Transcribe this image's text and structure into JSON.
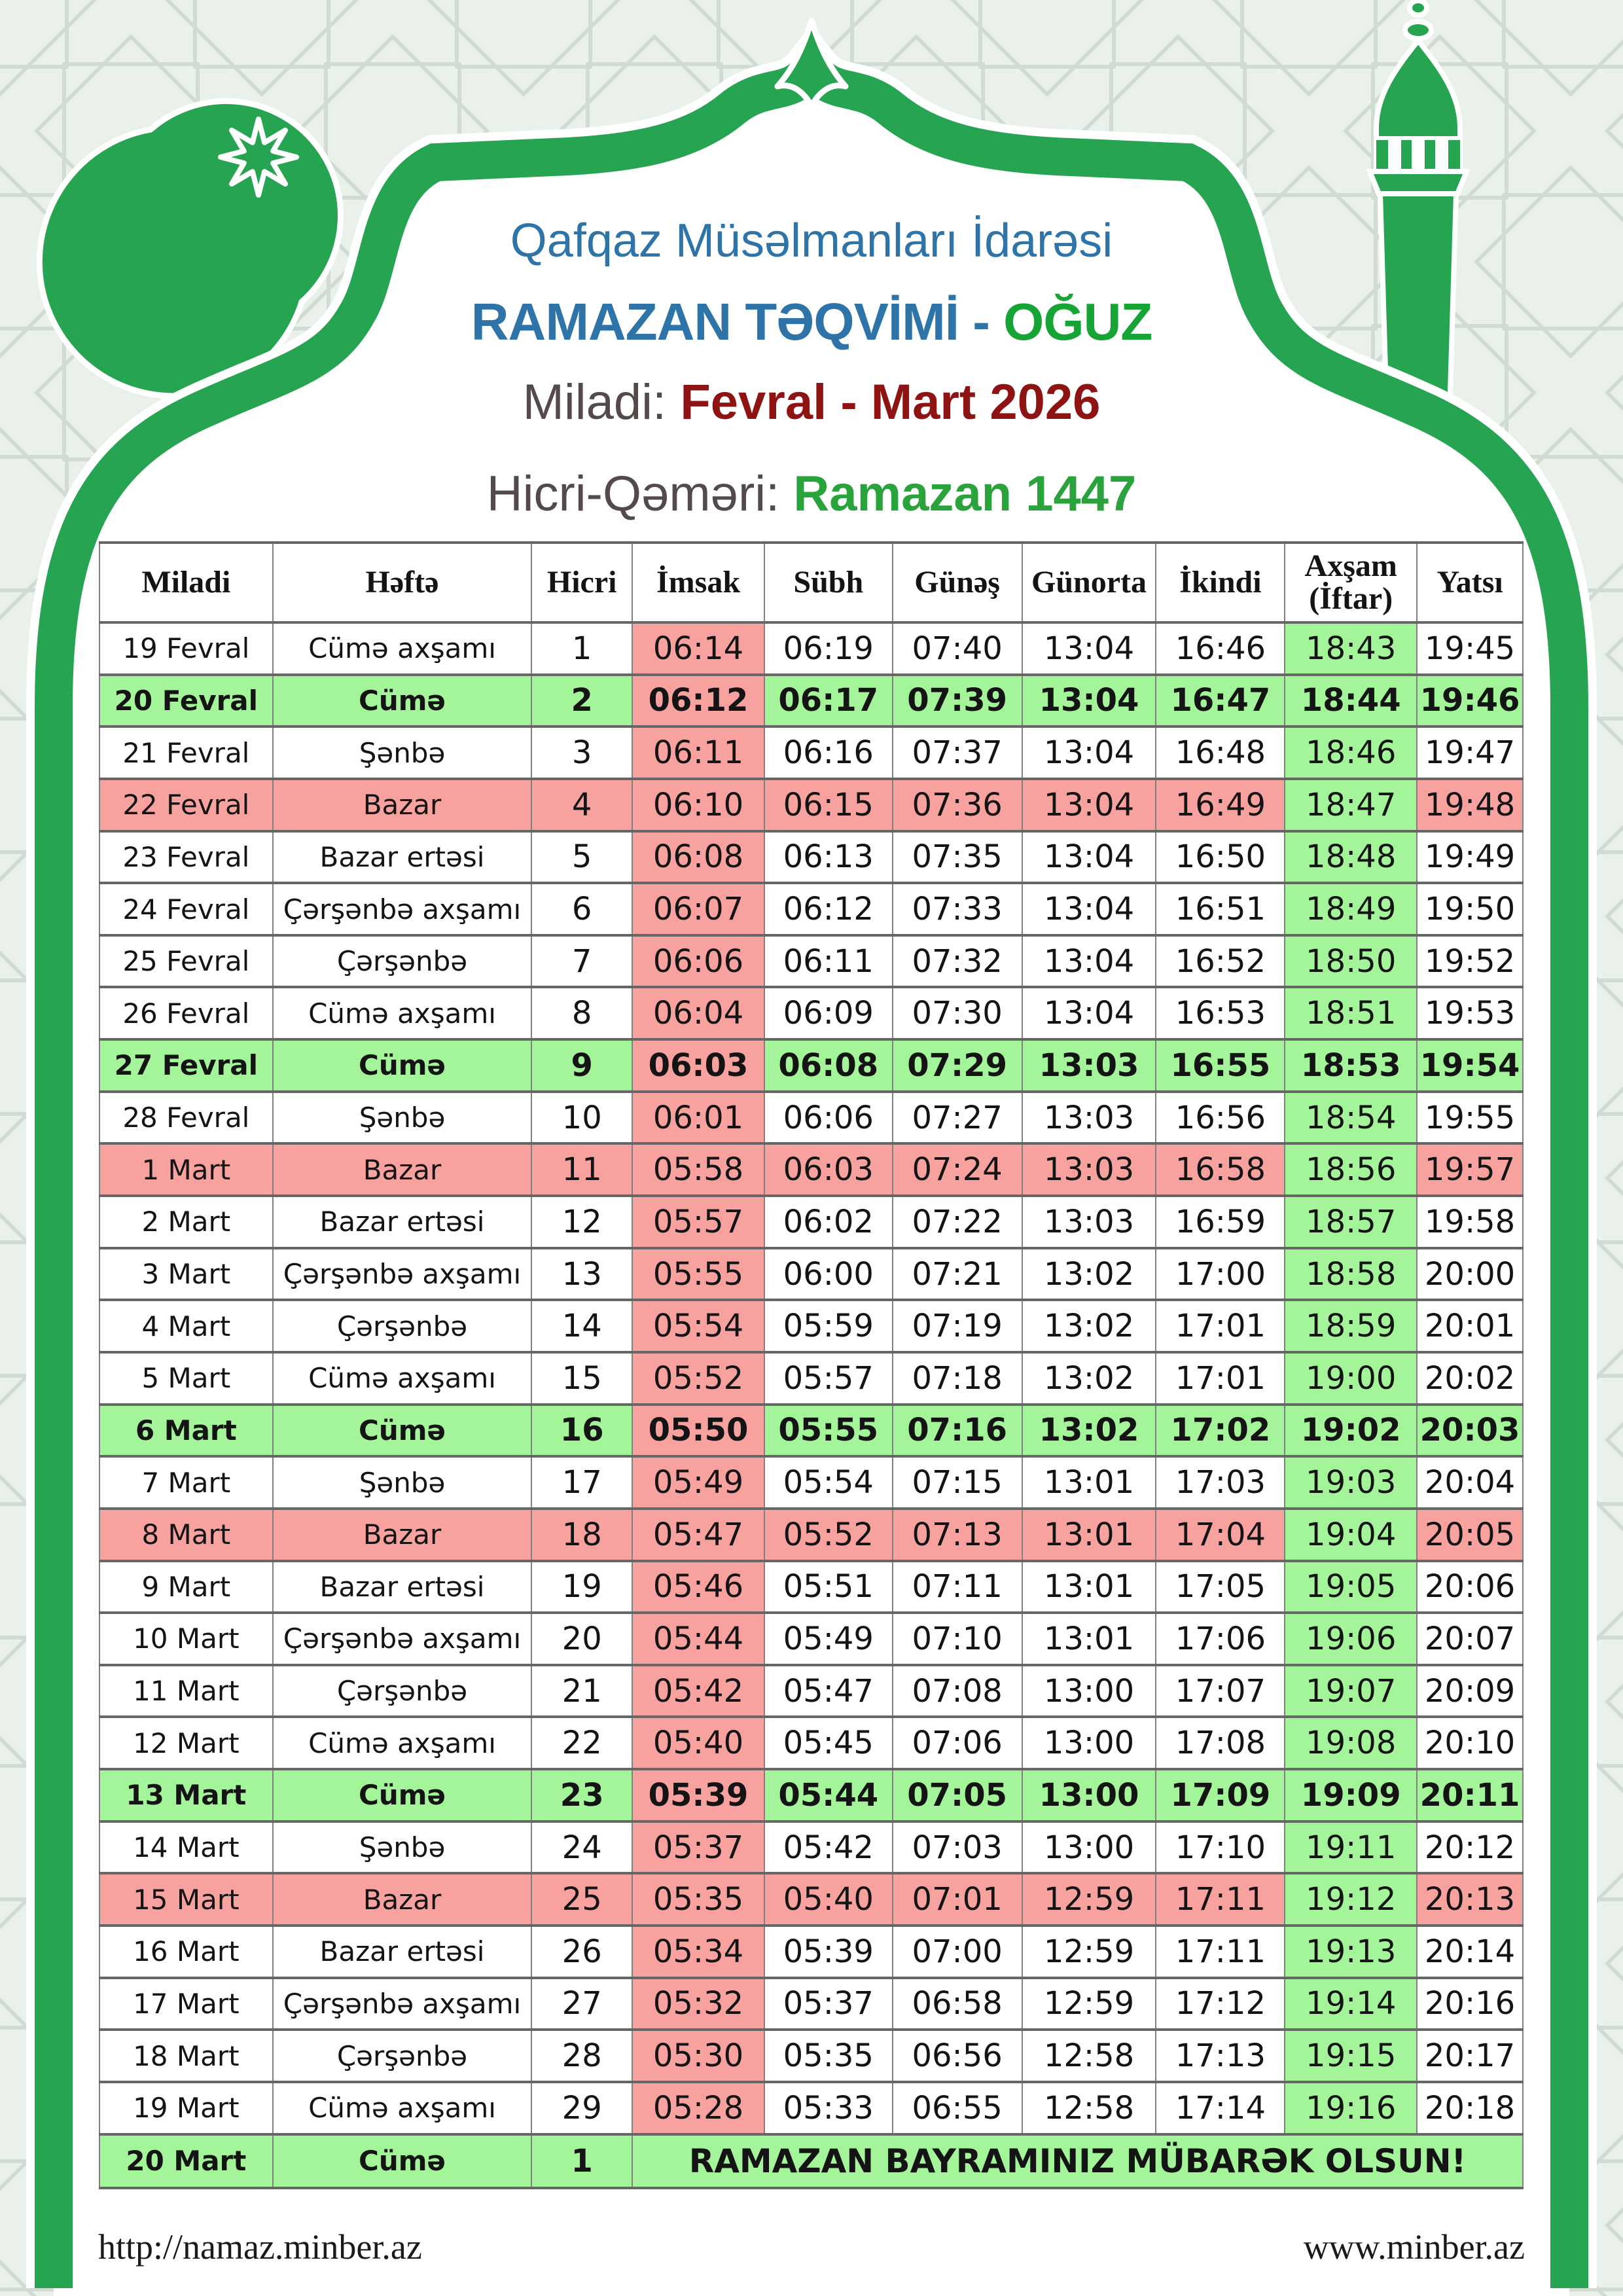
{
  "header": {
    "org": "Qafqaz Müsəlmanları İdarəsi",
    "title_main": "RAMAZAN TƏQVİMİ -",
    "title_city": "OĞUZ",
    "miladi_label": "Miladi:",
    "miladi_value": "Fevral - Mart 2026",
    "hicri_label": "Hicri-Qəməri:",
    "hicri_value": "Ramazan 1447"
  },
  "icons": {
    "crescent": "crescent-moon-icon",
    "star": "eight-point-star-icon",
    "minaret": "minaret-icon",
    "dome": "dome-arch-frame"
  },
  "table": {
    "columns": [
      "Miladi",
      "Həftə",
      "Hicri",
      "İmsak",
      "Sübh",
      "Günəş",
      "Günorta",
      "İkindi",
      "Axşam (İftar)",
      "Yatsı"
    ],
    "rows": [
      [
        "19 Fevral",
        "Cümə axşamı",
        "1",
        "06:14",
        "06:19",
        "07:40",
        "13:04",
        "16:46",
        "18:43",
        "19:45",
        "normal"
      ],
      [
        "20 Fevral",
        "Cümə",
        "2",
        "06:12",
        "06:17",
        "07:39",
        "13:04",
        "16:47",
        "18:44",
        "19:46",
        "friday"
      ],
      [
        "21 Fevral",
        "Şənbə",
        "3",
        "06:11",
        "06:16",
        "07:37",
        "13:04",
        "16:48",
        "18:46",
        "19:47",
        "normal"
      ],
      [
        "22 Fevral",
        "Bazar",
        "4",
        "06:10",
        "06:15",
        "07:36",
        "13:04",
        "16:49",
        "18:47",
        "19:48",
        "sunday"
      ],
      [
        "23 Fevral",
        "Bazar ertəsi",
        "5",
        "06:08",
        "06:13",
        "07:35",
        "13:04",
        "16:50",
        "18:48",
        "19:49",
        "normal"
      ],
      [
        "24 Fevral",
        "Çərşənbə axşamı",
        "6",
        "06:07",
        "06:12",
        "07:33",
        "13:04",
        "16:51",
        "18:49",
        "19:50",
        "normal"
      ],
      [
        "25 Fevral",
        "Çərşənbə",
        "7",
        "06:06",
        "06:11",
        "07:32",
        "13:04",
        "16:52",
        "18:50",
        "19:52",
        "normal"
      ],
      [
        "26 Fevral",
        "Cümə axşamı",
        "8",
        "06:04",
        "06:09",
        "07:30",
        "13:04",
        "16:53",
        "18:51",
        "19:53",
        "normal"
      ],
      [
        "27 Fevral",
        "Cümə",
        "9",
        "06:03",
        "06:08",
        "07:29",
        "13:03",
        "16:55",
        "18:53",
        "19:54",
        "friday"
      ],
      [
        "28 Fevral",
        "Şənbə",
        "10",
        "06:01",
        "06:06",
        "07:27",
        "13:03",
        "16:56",
        "18:54",
        "19:55",
        "normal"
      ],
      [
        "1 Mart",
        "Bazar",
        "11",
        "05:58",
        "06:03",
        "07:24",
        "13:03",
        "16:58",
        "18:56",
        "19:57",
        "sunday"
      ],
      [
        "2 Mart",
        "Bazar ertəsi",
        "12",
        "05:57",
        "06:02",
        "07:22",
        "13:03",
        "16:59",
        "18:57",
        "19:58",
        "normal"
      ],
      [
        "3 Mart",
        "Çərşənbə axşamı",
        "13",
        "05:55",
        "06:00",
        "07:21",
        "13:02",
        "17:00",
        "18:58",
        "20:00",
        "normal"
      ],
      [
        "4 Mart",
        "Çərşənbə",
        "14",
        "05:54",
        "05:59",
        "07:19",
        "13:02",
        "17:01",
        "18:59",
        "20:01",
        "normal"
      ],
      [
        "5 Mart",
        "Cümə axşamı",
        "15",
        "05:52",
        "05:57",
        "07:18",
        "13:02",
        "17:01",
        "19:00",
        "20:02",
        "normal"
      ],
      [
        "6 Mart",
        "Cümə",
        "16",
        "05:50",
        "05:55",
        "07:16",
        "13:02",
        "17:02",
        "19:02",
        "20:03",
        "friday"
      ],
      [
        "7 Mart",
        "Şənbə",
        "17",
        "05:49",
        "05:54",
        "07:15",
        "13:01",
        "17:03",
        "19:03",
        "20:04",
        "normal"
      ],
      [
        "8 Mart",
        "Bazar",
        "18",
        "05:47",
        "05:52",
        "07:13",
        "13:01",
        "17:04",
        "19:04",
        "20:05",
        "sunday"
      ],
      [
        "9 Mart",
        "Bazar ertəsi",
        "19",
        "05:46",
        "05:51",
        "07:11",
        "13:01",
        "17:05",
        "19:05",
        "20:06",
        "normal"
      ],
      [
        "10 Mart",
        "Çərşənbə axşamı",
        "20",
        "05:44",
        "05:49",
        "07:10",
        "13:01",
        "17:06",
        "19:06",
        "20:07",
        "normal"
      ],
      [
        "11 Mart",
        "Çərşənbə",
        "21",
        "05:42",
        "05:47",
        "07:08",
        "13:00",
        "17:07",
        "19:07",
        "20:09",
        "normal"
      ],
      [
        "12 Mart",
        "Cümə axşamı",
        "22",
        "05:40",
        "05:45",
        "07:06",
        "13:00",
        "17:08",
        "19:08",
        "20:10",
        "normal"
      ],
      [
        "13 Mart",
        "Cümə",
        "23",
        "05:39",
        "05:44",
        "07:05",
        "13:00",
        "17:09",
        "19:09",
        "20:11",
        "friday"
      ],
      [
        "14 Mart",
        "Şənbə",
        "24",
        "05:37",
        "05:42",
        "07:03",
        "13:00",
        "17:10",
        "19:11",
        "20:12",
        "normal"
      ],
      [
        "15 Mart",
        "Bazar",
        "25",
        "05:35",
        "05:40",
        "07:01",
        "12:59",
        "17:11",
        "19:12",
        "20:13",
        "sunday"
      ],
      [
        "16 Mart",
        "Bazar ertəsi",
        "26",
        "05:34",
        "05:39",
        "07:00",
        "12:59",
        "17:11",
        "19:13",
        "20:14",
        "normal"
      ],
      [
        "17 Mart",
        "Çərşənbə axşamı",
        "27",
        "05:32",
        "05:37",
        "06:58",
        "12:59",
        "17:12",
        "19:14",
        "20:16",
        "normal"
      ],
      [
        "18 Mart",
        "Çərşənbə",
        "28",
        "05:30",
        "05:35",
        "06:56",
        "12:58",
        "17:13",
        "19:15",
        "20:17",
        "normal"
      ],
      [
        "19 Mart",
        "Cümə axşamı",
        "29",
        "05:28",
        "05:33",
        "06:55",
        "12:58",
        "17:14",
        "19:16",
        "20:18",
        "normal"
      ]
    ],
    "final_row": {
      "date": "20 Mart",
      "weekday": "Cümə",
      "hicri": "1",
      "message": "RAMAZAN BAYRAMINIZ MÜBARƏK OLSUN!"
    }
  },
  "footer": {
    "left": "http://namaz.minber.az",
    "right": "www.minber.az"
  },
  "colors": {
    "frame_green": "#26a451",
    "cell_green": "#a4f49a",
    "cell_red": "#f7a29f",
    "page_bg": "#eaf1eb",
    "pattern_line": "#cfdbd3",
    "title_blue": "#2e74a9",
    "city_green": "#16a434",
    "date_red": "#8e1313",
    "label_gray": "#544a4a",
    "hicri_green": "#2ba33c",
    "text_black": "#141414"
  }
}
